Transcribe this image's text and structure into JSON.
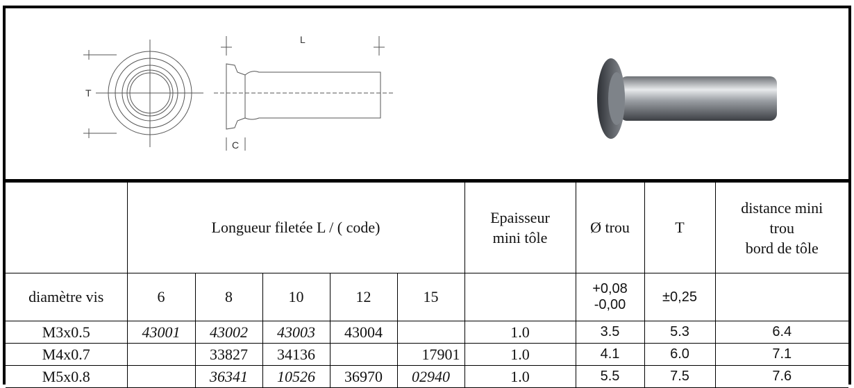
{
  "drawing": {
    "labels": [
      "T",
      "L",
      "C"
    ]
  },
  "table": {
    "header": {
      "length": "Longueur filetée L / ( code)",
      "thickness": [
        "Epaisseur",
        "mini tôle"
      ],
      "hole": "Ø trou",
      "t": "T",
      "distance": [
        "distance mini",
        "trou",
        "bord de tôle"
      ]
    },
    "subheader": {
      "label": "diamètre vis",
      "lengths": [
        "6",
        "8",
        "10",
        "12",
        "15"
      ],
      "hole_tolerance": [
        "+0,08",
        "-0,00"
      ],
      "t_tolerance": "±0,25"
    },
    "rows": [
      {
        "size": "M3x0.5",
        "codes": [
          "43001",
          "43002",
          "43003",
          "43004"
        ],
        "thickness": "1.0",
        "hole": "3.5",
        "t": "5.3",
        "distance": "6.4"
      },
      {
        "size": "M4x0.7",
        "codes": [
          "33827",
          "34136",
          "17901"
        ],
        "thickness": "1.0",
        "hole": "4.1",
        "t": "6.0",
        "distance": "7.1"
      },
      {
        "size": "M5x0.8",
        "codes": [
          "36341",
          "10526",
          "36970",
          "02940"
        ],
        "thickness": "1.0",
        "hole": "5.5",
        "t": "7.5",
        "distance": "7.6"
      }
    ]
  }
}
